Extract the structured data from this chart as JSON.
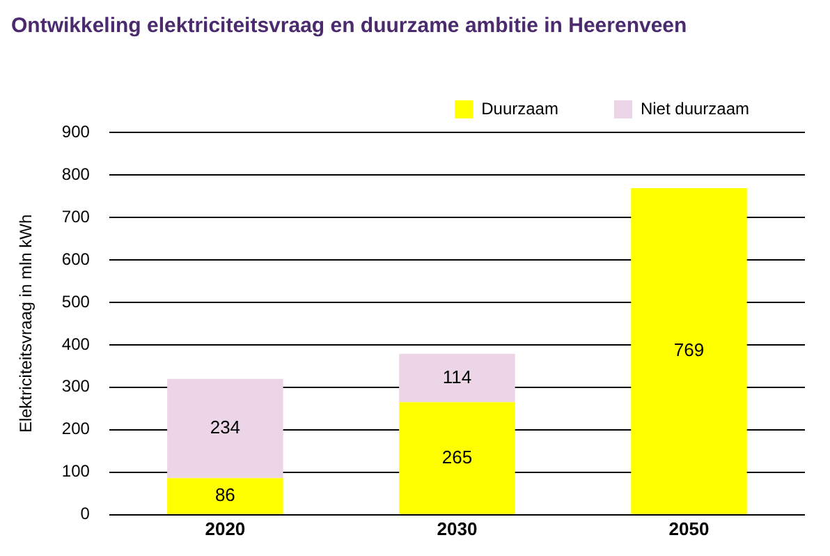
{
  "chart_data": {
    "type": "bar",
    "title": "Ontwikkeling elektriciteitsvraag en duurzame ambitie in Heerenveen",
    "ylabel": "Elektriciteitsvraag in mln kWh",
    "categories": [
      "2020",
      "2030",
      "2050"
    ],
    "stacked": true,
    "series": [
      {
        "name": "Duurzaam",
        "color": "#ffff00",
        "values": [
          86,
          265,
          769
        ]
      },
      {
        "name": "Niet duurzaam",
        "color": "#ecd5e6",
        "values": [
          234,
          114,
          null
        ]
      }
    ],
    "ylim": [
      0,
      900
    ],
    "yticks": [
      0,
      100,
      200,
      300,
      400,
      500,
      600,
      700,
      800,
      900
    ],
    "grid": "y",
    "legend": "top right",
    "data_labels": true
  }
}
